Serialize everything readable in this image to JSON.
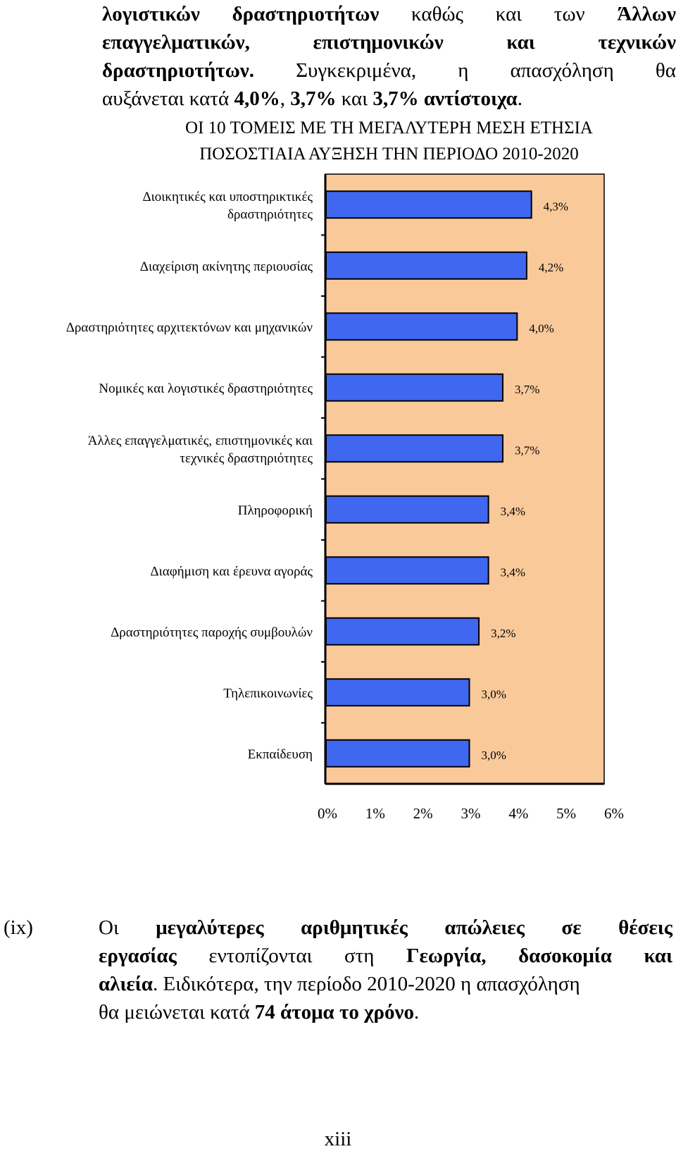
{
  "intro": {
    "line1": [
      {
        "text": "λογιστικών",
        "bold": true
      },
      {
        "text": "δραστηριοτήτων",
        "bold": true
      },
      {
        "text": "καθώς",
        "bold": false
      },
      {
        "text": "και",
        "bold": false
      },
      {
        "text": "των",
        "bold": false
      },
      {
        "text": "Άλλων",
        "bold": true
      }
    ],
    "line2": [
      {
        "text": "επαγγελματικών,",
        "bold": true
      },
      {
        "text": "επιστημονικών",
        "bold": true
      },
      {
        "text": "και",
        "bold": true
      },
      {
        "text": "τεχνικών",
        "bold": true
      }
    ],
    "line3": [
      {
        "text": "δραστηριοτήτων.",
        "bold": true
      },
      {
        "text": "Συγκεκριμένα,",
        "bold": false
      },
      {
        "text": "η",
        "bold": false
      },
      {
        "text": "απασχόληση",
        "bold": false
      },
      {
        "text": "θα",
        "bold": false
      }
    ],
    "line4": [
      {
        "text": "αυξάνεται κατά ",
        "bold": false
      },
      {
        "text": "4,0%",
        "bold": true
      },
      {
        "text": ", ",
        "bold": false
      },
      {
        "text": "3,7%",
        "bold": true
      },
      {
        "text": " και ",
        "bold": false
      },
      {
        "text": "3,7% αντίστοιχα",
        "bold": true
      },
      {
        "text": ".",
        "bold": false
      }
    ]
  },
  "chart_data": {
    "type": "bar",
    "orientation": "horizontal",
    "title_line1": "ΟΙ 10 ΤΟΜΕΙΣ ΜΕ ΤΗ ΜΕΓΑΛΥΤΕΡΗ ΜΕΣΗ ΕΤΗΣΙΑ",
    "title_line2": "ΠΟΣΟΣΤΙΑΙΑ ΑΥΞΗΣΗ ΤΗΝ ΠΕΡΙΟΔΟ 2010-2020",
    "categories": [
      [
        "Διοικητικές και υποστηρικτικές",
        "δραστηριότητες"
      ],
      [
        "Διαχείριση ακίνητης περιουσίας"
      ],
      [
        "Δραστηριότητες αρχιτεκτόνων και μηχανικών"
      ],
      [
        "Νομικές και λογιστικές δραστηριότητες"
      ],
      [
        "Άλλες επαγγελματικές, επιστημονικές και",
        "τεχνικές δραστηριότητες"
      ],
      [
        "Πληροφορική"
      ],
      [
        "Διαφήμιση και έρευνα αγοράς"
      ],
      [
        "Δραστηριότητες παροχής συμβουλών"
      ],
      [
        "Τηλεπικοινωνίες"
      ],
      [
        "Εκπαίδευση"
      ]
    ],
    "values": [
      4.3,
      4.2,
      4.0,
      3.7,
      3.7,
      3.4,
      3.4,
      3.2,
      3.0,
      3.0
    ],
    "value_labels": [
      "4,3%",
      "4,2%",
      "4,0%",
      "3,7%",
      "3,7%",
      "3,4%",
      "3,4%",
      "3,2%",
      "3,0%",
      "3,0%"
    ],
    "xlim": [
      0,
      6
    ],
    "x_ticks": [
      "0%",
      "1%",
      "2%",
      "3%",
      "4%",
      "5%",
      "6%"
    ],
    "grid": false,
    "colors": {
      "bar_fill": "#3F67F0",
      "bar_stroke": "#000000",
      "plot_background": "#F9C99A"
    }
  },
  "item_ix": {
    "marker": "(ix)",
    "line1": [
      {
        "text": "Οι",
        "bold": false
      },
      {
        "text": "μεγαλύτερες",
        "bold": true
      },
      {
        "text": "αριθμητικές",
        "bold": true
      },
      {
        "text": "απώλειες",
        "bold": true
      },
      {
        "text": "σε",
        "bold": true
      },
      {
        "text": "θέσεις",
        "bold": true
      }
    ],
    "line2": [
      {
        "text": "εργασίας",
        "bold": true
      },
      {
        "text": "εντοπίζονται",
        "bold": false
      },
      {
        "text": "στη",
        "bold": false
      },
      {
        "text": "Γεωργία,",
        "bold": true
      },
      {
        "text": "δασοκομία",
        "bold": true
      },
      {
        "text": "και",
        "bold": true
      }
    ],
    "line3": [
      {
        "text": "αλιεία",
        "bold": true
      },
      {
        "text": ". Ειδικότερα, την περίοδο 2010-2020 η απασχόληση",
        "bold": false
      }
    ],
    "line4": [
      {
        "text": "θα μειώνεται κατά ",
        "bold": false
      },
      {
        "text": "74 άτομα το χρόνο",
        "bold": true
      },
      {
        "text": ".",
        "bold": false
      }
    ]
  },
  "page_number": "xiii"
}
